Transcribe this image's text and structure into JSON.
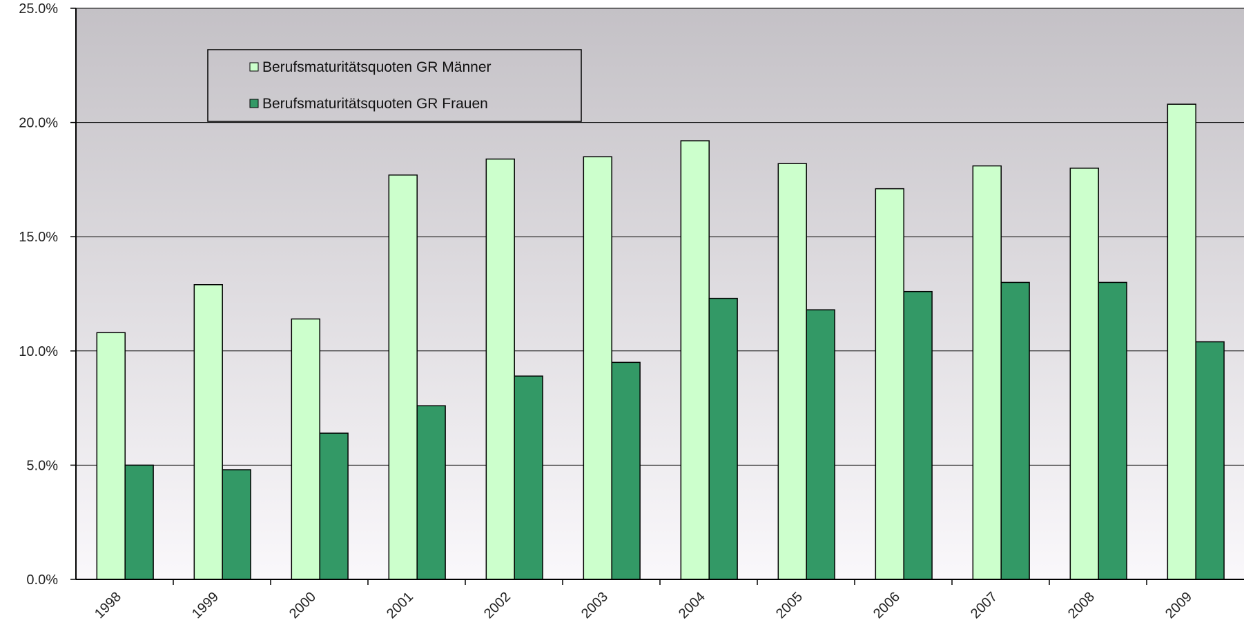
{
  "chart_data": {
    "type": "bar",
    "categories": [
      "1998",
      "1999",
      "2000",
      "2001",
      "2002",
      "2003",
      "2004",
      "2005",
      "2006",
      "2007",
      "2008",
      "2009"
    ],
    "series": [
      {
        "name": "Berufsmaturitätsquoten GR Männer",
        "color": "#ccffcc",
        "values": [
          10.8,
          12.9,
          11.4,
          17.7,
          18.4,
          18.5,
          19.2,
          18.2,
          17.1,
          18.1,
          18.0,
          20.8
        ]
      },
      {
        "name": "Berufsmaturitätsquoten GR Frauen",
        "color": "#339966",
        "values": [
          5.0,
          4.8,
          6.4,
          7.6,
          8.9,
          9.5,
          12.3,
          11.8,
          12.6,
          13.0,
          13.0,
          10.4
        ]
      }
    ],
    "ylim": [
      0,
      25
    ],
    "yticks": [
      0,
      5,
      10,
      15,
      20,
      25
    ],
    "ytick_labels": [
      "0.0%",
      "5.0%",
      "10.0%",
      "15.0%",
      "20.0%",
      "25.0%"
    ],
    "grid": true,
    "legend_position": "top-left",
    "title": "",
    "xlabel": "",
    "ylabel": ""
  }
}
